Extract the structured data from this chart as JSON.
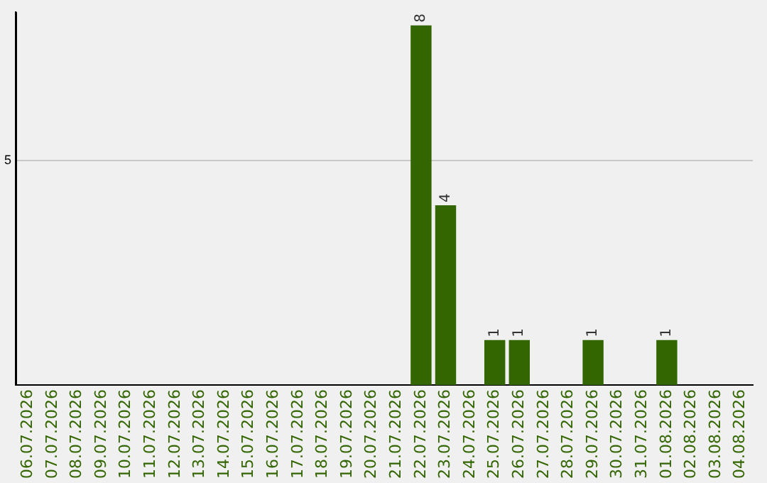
{
  "chart_data": {
    "type": "bar",
    "categories": [
      "06.07.2026",
      "07.07.2026",
      "08.07.2026",
      "09.07.2026",
      "10.07.2026",
      "11.07.2026",
      "12.07.2026",
      "13.07.2026",
      "14.07.2026",
      "15.07.2026",
      "16.07.2026",
      "17.07.2026",
      "18.07.2026",
      "19.07.2026",
      "20.07.2026",
      "21.07.2026",
      "22.07.2026",
      "23.07.2026",
      "24.07.2026",
      "25.07.2026",
      "26.07.2026",
      "27.07.2026",
      "28.07.2026",
      "29.07.2026",
      "30.07.2026",
      "31.07.2026",
      "01.08.2026",
      "02.08.2026",
      "03.08.2026",
      "04.08.2026"
    ],
    "values": [
      null,
      null,
      null,
      null,
      null,
      null,
      null,
      null,
      null,
      null,
      null,
      null,
      null,
      null,
      null,
      null,
      8,
      4,
      null,
      1,
      1,
      null,
      null,
      1,
      null,
      null,
      1,
      null,
      null,
      null
    ],
    "data_labels": true,
    "color": "#336600",
    "ylim": [
      0,
      8.3
    ],
    "yticks": [
      5
    ],
    "grid": "y",
    "legend": false
  }
}
